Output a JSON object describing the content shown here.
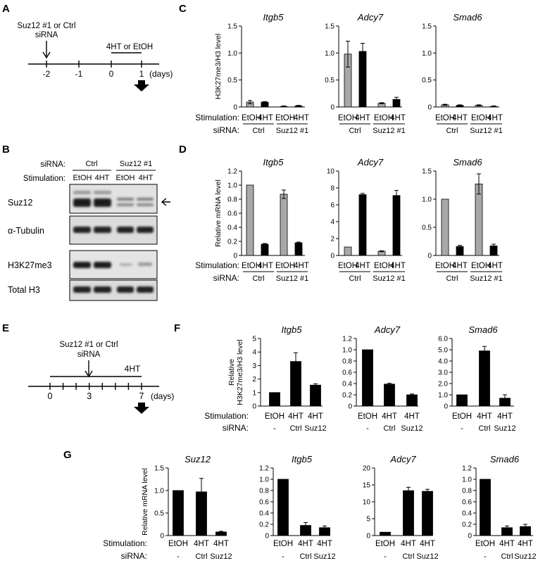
{
  "panels": {
    "A": {
      "label": "A",
      "treatment_line1": "Suz12 #1 or Ctrl",
      "treatment_line2": "siRNA",
      "stim": "4HT or EtOH",
      "ticks": [
        "-2",
        "-1",
        "0",
        "1"
      ],
      "unit": "(days)"
    },
    "B": {
      "label": "B",
      "sirna_label": "siRNA:",
      "stim_label": "Stimulation:",
      "groups": [
        "Ctrl",
        "Suz12 #1"
      ],
      "lanes": [
        "EtOH",
        "4HT",
        "EtOH",
        "4HT"
      ],
      "blots": [
        "Suz12",
        "α-Tubulin",
        "H3K27me3",
        "Total H3"
      ]
    },
    "C": {
      "label": "C"
    },
    "D": {
      "label": "D"
    },
    "E": {
      "label": "E",
      "treatment_line1": "Suz12 #1 or Ctrl",
      "treatment_line2": "siRNA",
      "stim": "4HT",
      "ticks": [
        "0",
        "3",
        "7"
      ],
      "unit": "(days)"
    },
    "F": {
      "label": "F"
    },
    "G": {
      "label": "G"
    }
  },
  "chart_data": [
    {
      "panel": "C",
      "type": "bar",
      "title": "Itgb5",
      "ylabel": "H3K27me3/H3 level",
      "ylim": [
        0,
        1.5
      ],
      "yticks": [
        "0",
        "0.5",
        "1.0",
        "1.5"
      ],
      "categories": [
        "EtOH",
        "4HT",
        "EtOH",
        "4HT"
      ],
      "groups": [
        "Ctrl",
        "Suz12 #1"
      ],
      "values": [
        0.09,
        0.09,
        0.01,
        0.02
      ],
      "errors": [
        0.03,
        0.01,
        0.01,
        0.01
      ],
      "colors": [
        "#a8a8a8",
        "#000000",
        "#a8a8a8",
        "#000000"
      ]
    },
    {
      "panel": "C",
      "type": "bar",
      "title": "Adcy7",
      "ylabel": "",
      "ylim": [
        0,
        1.5
      ],
      "yticks": [
        "0",
        "0.5",
        "1.0",
        "1.5"
      ],
      "categories": [
        "EtOH",
        "4HT",
        "EtOH",
        "4HT"
      ],
      "groups": [
        "Ctrl",
        "Suz12 #1"
      ],
      "values": [
        0.98,
        1.03,
        0.07,
        0.14
      ],
      "errors": [
        0.24,
        0.15,
        0.01,
        0.04
      ],
      "colors": [
        "#a8a8a8",
        "#000000",
        "#a8a8a8",
        "#000000"
      ]
    },
    {
      "panel": "C",
      "type": "bar",
      "title": "Smad6",
      "ylabel": "",
      "ylim": [
        0,
        1.5
      ],
      "yticks": [
        "0",
        "0.5",
        "1.0",
        "1.5"
      ],
      "categories": [
        "EtOH",
        "4HT",
        "EtOH",
        "4HT"
      ],
      "groups": [
        "Ctrl",
        "Suz12 #1"
      ],
      "values": [
        0.04,
        0.03,
        0.03,
        0.01
      ],
      "errors": [
        0.01,
        0.01,
        0.01,
        0.01
      ],
      "colors": [
        "#a8a8a8",
        "#000000",
        "#a8a8a8",
        "#000000"
      ]
    },
    {
      "panel": "D",
      "type": "bar",
      "title": "Itgb5",
      "ylabel": "Relative mRNA level",
      "ylim": [
        0,
        1.2
      ],
      "yticks": [
        "0",
        "0.2",
        "0.4",
        "0.6",
        "0.8",
        "1.0",
        "1.2"
      ],
      "categories": [
        "EtOH",
        "4HT",
        "EtOH",
        "4HT"
      ],
      "groups": [
        "Ctrl",
        "Suz12 #1"
      ],
      "values": [
        1.0,
        0.16,
        0.87,
        0.18
      ],
      "errors": [
        0,
        0.01,
        0.06,
        0.01
      ],
      "colors": [
        "#a8a8a8",
        "#000000",
        "#a8a8a8",
        "#000000"
      ]
    },
    {
      "panel": "D",
      "type": "bar",
      "title": "Adcy7",
      "ylabel": "",
      "ylim": [
        0,
        10
      ],
      "yticks": [
        "0",
        "2",
        "4",
        "6",
        "8",
        "10"
      ],
      "categories": [
        "EtOH",
        "4HT",
        "EtOH",
        "4HT"
      ],
      "groups": [
        "Ctrl",
        "Suz12 #1"
      ],
      "values": [
        1.0,
        7.2,
        0.5,
        7.1
      ],
      "errors": [
        0,
        0.15,
        0.05,
        0.6
      ],
      "colors": [
        "#a8a8a8",
        "#000000",
        "#a8a8a8",
        "#000000"
      ]
    },
    {
      "panel": "D",
      "type": "bar",
      "title": "Smad6",
      "ylabel": "",
      "ylim": [
        0,
        1.5
      ],
      "yticks": [
        "0",
        "0.5",
        "1.0",
        "1.5"
      ],
      "categories": [
        "EtOH",
        "4HT",
        "EtOH",
        "4HT"
      ],
      "groups": [
        "Ctrl",
        "Suz12 #1"
      ],
      "values": [
        1.0,
        0.16,
        1.27,
        0.17
      ],
      "errors": [
        0,
        0.02,
        0.18,
        0.03
      ],
      "colors": [
        "#a8a8a8",
        "#000000",
        "#a8a8a8",
        "#000000"
      ]
    },
    {
      "panel": "F",
      "type": "bar",
      "title": "Itgb5",
      "ylabel": "Relative H3K27me3/H3 level",
      "ylim": [
        0,
        5
      ],
      "yticks": [
        "0",
        "1",
        "2",
        "3",
        "4",
        "5"
      ],
      "categories": [
        "EtOH",
        "4HT",
        "4HT"
      ],
      "sirna": [
        "-",
        "Ctrl",
        "Suz12"
      ],
      "values": [
        1.0,
        3.3,
        1.55
      ],
      "errors": [
        0,
        0.65,
        0.1
      ],
      "colors": [
        "#000000",
        "#000000",
        "#000000"
      ]
    },
    {
      "panel": "F",
      "type": "bar",
      "title": "Adcy7",
      "ylabel": "",
      "ylim": [
        0,
        1.2
      ],
      "yticks": [
        "0",
        "0.2",
        "0.4",
        "0.6",
        "0.8",
        "1.0",
        "1.2"
      ],
      "categories": [
        "EtOH",
        "4HT",
        "4HT"
      ],
      "sirna": [
        "-",
        "Ctrl",
        "Suz12"
      ],
      "values": [
        1.0,
        0.39,
        0.2
      ],
      "errors": [
        0,
        0.015,
        0.015
      ],
      "colors": [
        "#000000",
        "#000000",
        "#000000"
      ]
    },
    {
      "panel": "F",
      "type": "bar",
      "title": "Smad6",
      "ylabel": "",
      "ylim": [
        0,
        6
      ],
      "yticks": [
        "0",
        "1.0",
        "2.0",
        "3.0",
        "4.0",
        "5.0",
        "6.0"
      ],
      "categories": [
        "EtOH",
        "4HT",
        "4HT"
      ],
      "sirna": [
        "-",
        "Ctrl",
        "Suz12"
      ],
      "values": [
        1.0,
        4.9,
        0.7
      ],
      "errors": [
        0,
        0.4,
        0.3
      ],
      "colors": [
        "#000000",
        "#000000",
        "#000000"
      ]
    },
    {
      "panel": "G",
      "type": "bar",
      "title": "Suz12",
      "ylabel": "Relative mRNA level",
      "ylim": [
        0,
        1.5
      ],
      "yticks": [
        "0",
        "0.5",
        "1.0",
        "1.5"
      ],
      "categories": [
        "EtOH",
        "4HT",
        "4HT"
      ],
      "sirna": [
        "-",
        "Ctrl",
        "Suz12"
      ],
      "values": [
        1.0,
        0.97,
        0.08
      ],
      "errors": [
        0,
        0.3,
        0.015
      ],
      "colors": [
        "#000000",
        "#000000",
        "#000000"
      ]
    },
    {
      "panel": "G",
      "type": "bar",
      "title": "Itgb5",
      "ylabel": "",
      "ylim": [
        0,
        1.2
      ],
      "yticks": [
        "0",
        "0.2",
        "0.4",
        "0.6",
        "0.8",
        "1.0",
        "1.2"
      ],
      "categories": [
        "EtOH",
        "4HT",
        "4HT"
      ],
      "sirna": [
        "-",
        "Ctrl",
        "Suz12"
      ],
      "values": [
        1.0,
        0.18,
        0.14
      ],
      "errors": [
        0,
        0.05,
        0.03
      ],
      "colors": [
        "#000000",
        "#000000",
        "#000000"
      ]
    },
    {
      "panel": "G",
      "type": "bar",
      "title": "Adcy7",
      "ylabel": "",
      "ylim": [
        0,
        20
      ],
      "yticks": [
        "0",
        "5",
        "10",
        "15",
        "20"
      ],
      "categories": [
        "EtOH",
        "4HT",
        "4HT"
      ],
      "sirna": [
        "-",
        "Ctrl",
        "Suz12"
      ],
      "values": [
        1.0,
        13.3,
        13.1
      ],
      "errors": [
        0,
        1.0,
        0.6
      ],
      "colors": [
        "#000000",
        "#000000",
        "#000000"
      ]
    },
    {
      "panel": "G",
      "type": "bar",
      "title": "Smad6",
      "ylabel": "",
      "ylim": [
        0,
        1.2
      ],
      "yticks": [
        "0",
        "0.2",
        "0.4",
        "0.6",
        "0.8",
        "1.0",
        "1.2"
      ],
      "categories": [
        "EtOH",
        "4HT",
        "4HT"
      ],
      "sirna": [
        "-",
        "Ctrl",
        "Suz12"
      ],
      "values": [
        1.0,
        0.14,
        0.16
      ],
      "errors": [
        0,
        0.03,
        0.04
      ],
      "colors": [
        "#000000",
        "#000000",
        "#000000"
      ]
    }
  ],
  "row_labels": {
    "stimulation": "Stimulation:",
    "sirna": "siRNA:"
  }
}
